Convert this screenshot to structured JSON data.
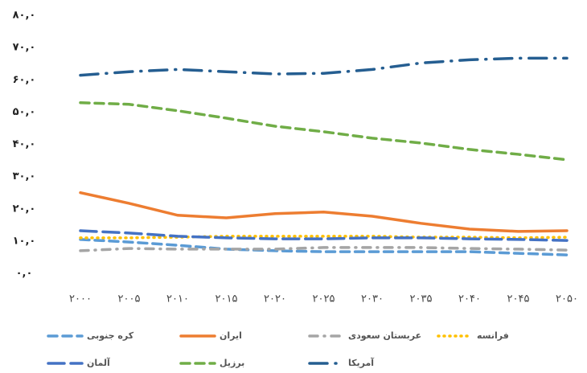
{
  "chart_data": {
    "type": "line",
    "categories": [
      "۲۰۰۰",
      "۲۰۰۵",
      "۲۰۱۰",
      "۲۰۱۵",
      "۲۰۲۰",
      "۲۰۲۵",
      "۲۰۳۰",
      "۲۰۳۵",
      "۲۰۴۰",
      "۲۰۴۵",
      "۲۰۵۰"
    ],
    "ylim": [
      0,
      80
    ],
    "yticks": [
      {
        "value": 0,
        "label": "۰,۰"
      },
      {
        "value": 10,
        "label": "۱۰,۰"
      },
      {
        "value": 20,
        "label": "۲۰,۰"
      },
      {
        "value": 30,
        "label": "۳۰,۰"
      },
      {
        "value": 40,
        "label": "۴۰,۰"
      },
      {
        "value": 50,
        "label": "۵۰,۰"
      },
      {
        "value": 60,
        "label": "۶۰,۰"
      },
      {
        "value": 70,
        "label": "۷۰,۰"
      },
      {
        "value": 80,
        "label": "۸۰,۰"
      }
    ],
    "grid": false,
    "legend": "bottom",
    "series": [
      {
        "name": "کره جنوبی",
        "color": "#5b9bd5",
        "style": "dashed",
        "values": [
          10.5,
          9.7,
          8.7,
          7.5,
          7,
          6.7,
          6.7,
          6.7,
          6.7,
          6.2,
          5.7
        ]
      },
      {
        "name": "ایران",
        "color": "#ed7d31",
        "style": "solid",
        "values": [
          25,
          21.7,
          18,
          17.2,
          18.5,
          19,
          17.7,
          15.5,
          13.7,
          13,
          13.2
        ]
      },
      {
        "name": "عربستان سعودی",
        "color": "#a5a5a5",
        "style": "dash-dot",
        "values": [
          7,
          7.7,
          7.5,
          7.5,
          7.5,
          8,
          8,
          8,
          7.7,
          7.5,
          7.2
        ]
      },
      {
        "name": "فرانسه",
        "color": "#ffc000",
        "style": "dotted",
        "values": [
          11,
          11,
          11.2,
          11.5,
          11.5,
          11.5,
          11.5,
          11.2,
          11.2,
          11,
          11.2
        ]
      },
      {
        "name": "آلمان",
        "color": "#4472c4",
        "style": "long-dash",
        "values": [
          13.2,
          12.5,
          11.5,
          11,
          10.7,
          10.7,
          11,
          11,
          10.7,
          10.5,
          10.2
        ]
      },
      {
        "name": "برزیل",
        "color": "#70ad47",
        "style": "dashed",
        "values": [
          52.9,
          52.4,
          50.4,
          48.1,
          45.6,
          43.9,
          41.9,
          40.4,
          38.4,
          36.9,
          35.2
        ]
      },
      {
        "name": "آمریکا",
        "color": "#255e91",
        "style": "long-dash-dot",
        "values": [
          61.4,
          62.5,
          63.2,
          62.5,
          61.8,
          62,
          63.2,
          65.2,
          66.2,
          66.7,
          66.7
        ]
      }
    ]
  }
}
